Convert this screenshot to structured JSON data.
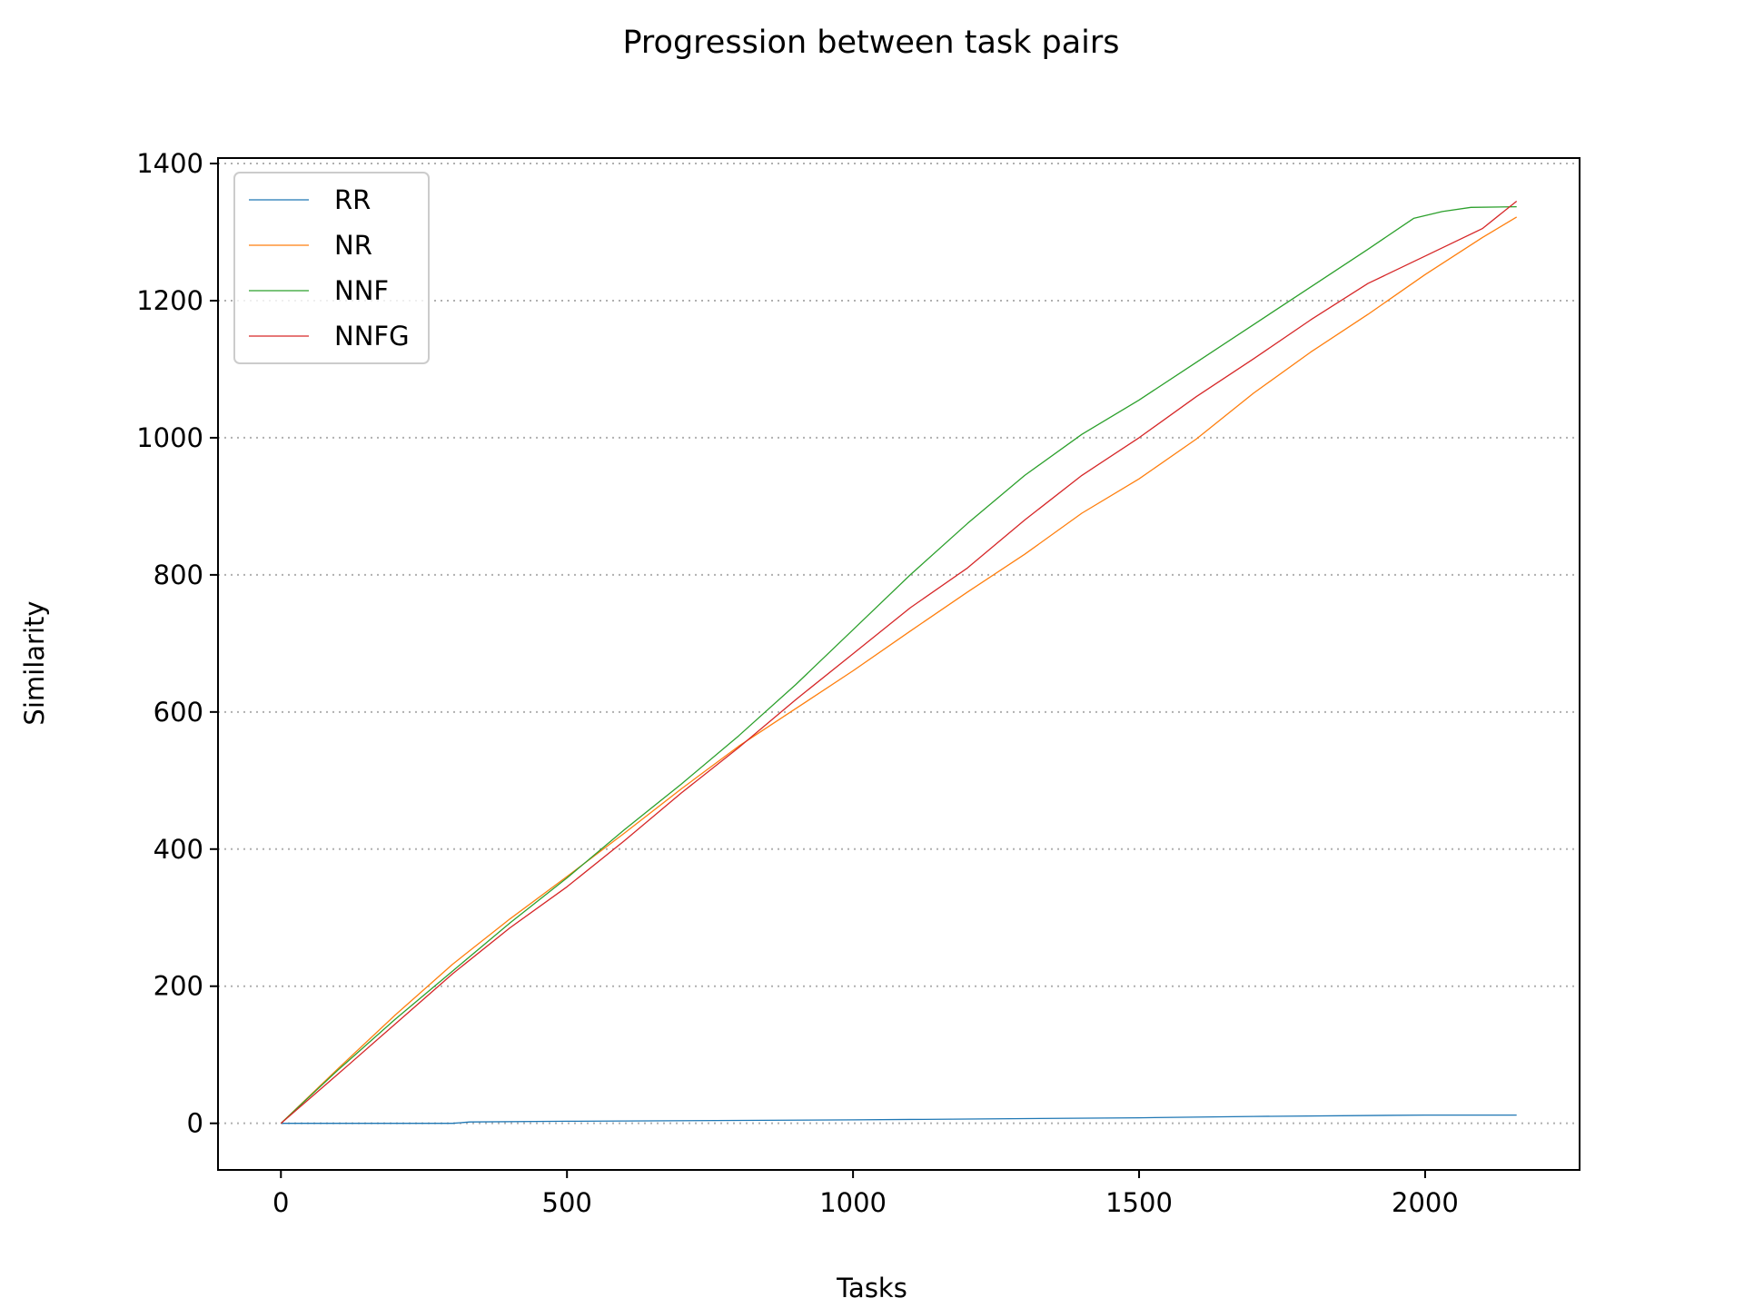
{
  "chart_data": {
    "type": "line",
    "title": "Progression between task pairs",
    "xlabel": "Tasks",
    "ylabel": "Similarity",
    "xlim": [
      -110,
      2270
    ],
    "ylim": [
      -68,
      1408
    ],
    "xticks": [
      0,
      500,
      1000,
      1500,
      2000
    ],
    "yticks": [
      0,
      200,
      400,
      600,
      800,
      1000,
      1200,
      1400
    ],
    "grid": {
      "axis": "y",
      "style": "dotted",
      "color": "#b0b0b0"
    },
    "legend_position": "upper left",
    "series": [
      {
        "name": "RR",
        "color": "#1f77b4",
        "x": [
          0,
          300,
          330,
          500,
          1000,
          1500,
          1700,
          2000,
          2160
        ],
        "y": [
          0,
          0,
          2,
          3,
          5,
          8,
          10,
          12,
          12
        ]
      },
      {
        "name": "NR",
        "color": "#ff7f0e",
        "x": [
          0,
          100,
          200,
          300,
          400,
          500,
          600,
          700,
          800,
          900,
          1000,
          1100,
          1200,
          1300,
          1400,
          1500,
          1600,
          1700,
          1800,
          1900,
          2000,
          2100,
          2160
        ],
        "y": [
          0,
          80,
          158,
          232,
          298,
          360,
          423,
          488,
          550,
          605,
          660,
          718,
          775,
          830,
          890,
          940,
          998,
          1065,
          1125,
          1180,
          1238,
          1292,
          1322
        ]
      },
      {
        "name": "NNF",
        "color": "#2ca02c",
        "x": [
          0,
          100,
          200,
          300,
          400,
          500,
          600,
          700,
          800,
          900,
          1000,
          1100,
          1200,
          1300,
          1400,
          1500,
          1600,
          1700,
          1800,
          1900,
          1980,
          2030,
          2080,
          2160
        ],
        "y": [
          0,
          78,
          152,
          222,
          292,
          358,
          428,
          495,
          565,
          640,
          720,
          800,
          875,
          945,
          1005,
          1055,
          1110,
          1165,
          1220,
          1275,
          1320,
          1330,
          1336,
          1337
        ]
      },
      {
        "name": "NNFG",
        "color": "#d62728",
        "x": [
          0,
          100,
          200,
          300,
          400,
          500,
          600,
          700,
          800,
          900,
          1000,
          1100,
          1200,
          1300,
          1400,
          1500,
          1600,
          1700,
          1800,
          1900,
          2000,
          2050,
          2100,
          2160
        ],
        "y": [
          0,
          72,
          145,
          218,
          285,
          345,
          412,
          482,
          548,
          618,
          685,
          752,
          810,
          880,
          945,
          1000,
          1060,
          1115,
          1172,
          1225,
          1265,
          1285,
          1305,
          1345
        ]
      }
    ]
  }
}
